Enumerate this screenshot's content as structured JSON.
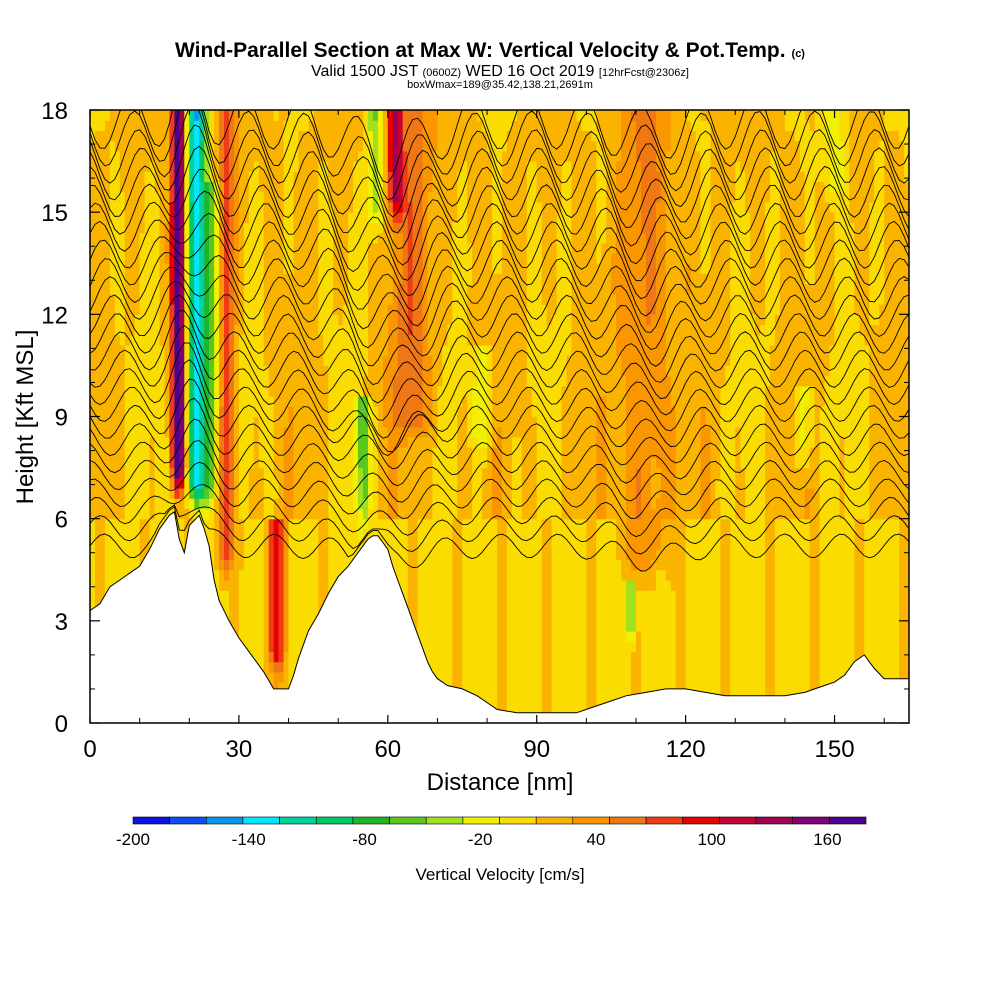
{
  "chart_data": {
    "type": "heatmap",
    "title": "Wind-Parallel Section at Max W: Vertical Velocity & Pot.Temp.",
    "title_mark": "(c)",
    "subtitle_parts": [
      "Valid 1500 JST ",
      "(0600Z)",
      " WED 16 Oct 2019 ",
      "[12hrFcst@2306z]"
    ],
    "subtitle2": "boxWmax=189@35.42,138.21,2691m",
    "xlabel": "Distance [nm]",
    "ylabel": "Height [Kft MSL]",
    "xlim": [
      0,
      165
    ],
    "ylim": [
      0,
      18
    ],
    "x_ticks": [
      0,
      30,
      60,
      90,
      120,
      150
    ],
    "y_ticks": [
      0,
      3,
      6,
      9,
      12,
      15,
      18
    ],
    "colorbar": {
      "label": "Vertical Velocity [cm/s]",
      "tick_values": [
        -200,
        -140,
        -80,
        -20,
        40,
        100,
        160
      ],
      "range": [
        -200,
        180
      ],
      "colors": [
        "#0a14e0",
        "#0a50f0",
        "#0a96f0",
        "#00e6ff",
        "#00d2a0",
        "#00c864",
        "#20b428",
        "#5ac81e",
        "#a0e01e",
        "#f0f000",
        "#fadc00",
        "#fab400",
        "#fa9600",
        "#f07814",
        "#f03c14",
        "#e60000",
        "#c80032",
        "#a00050",
        "#800078",
        "#50008c"
      ]
    },
    "terrain_kft": [
      [
        0,
        3.3
      ],
      [
        2,
        3.5
      ],
      [
        4,
        4.0
      ],
      [
        7,
        4.3
      ],
      [
        10,
        4.6
      ],
      [
        12,
        5.1
      ],
      [
        14,
        5.7
      ],
      [
        16,
        6.1
      ],
      [
        17,
        6.2
      ],
      [
        18,
        5.4
      ],
      [
        19,
        5.0
      ],
      [
        20,
        5.8
      ],
      [
        22,
        6.1
      ],
      [
        23,
        5.7
      ],
      [
        24,
        5.2
      ],
      [
        25,
        4.2
      ],
      [
        26,
        3.6
      ],
      [
        28,
        3.0
      ],
      [
        30,
        2.5
      ],
      [
        33,
        1.9
      ],
      [
        35,
        1.5
      ],
      [
        37,
        1.0
      ],
      [
        38,
        1.0
      ],
      [
        40,
        1.0
      ],
      [
        41,
        1.4
      ],
      [
        42,
        1.9
      ],
      [
        44,
        2.7
      ],
      [
        46,
        3.2
      ],
      [
        48,
        3.8
      ],
      [
        50,
        4.3
      ],
      [
        52,
        4.6
      ],
      [
        54,
        5.0
      ],
      [
        56,
        5.4
      ],
      [
        57,
        5.5
      ],
      [
        58,
        5.5
      ],
      [
        59,
        5.3
      ],
      [
        60,
        5.1
      ],
      [
        61,
        4.6
      ],
      [
        62,
        4.2
      ],
      [
        63,
        3.8
      ],
      [
        64,
        3.4
      ],
      [
        65,
        3.0
      ],
      [
        66,
        2.6
      ],
      [
        67,
        2.2
      ],
      [
        68,
        1.8
      ],
      [
        69,
        1.5
      ],
      [
        70,
        1.3
      ],
      [
        72,
        1.1
      ],
      [
        75,
        1.0
      ],
      [
        78,
        0.8
      ],
      [
        80,
        0.6
      ],
      [
        82,
        0.4
      ],
      [
        86,
        0.3
      ],
      [
        92,
        0.3
      ],
      [
        98,
        0.3
      ],
      [
        100,
        0.4
      ],
      [
        104,
        0.6
      ],
      [
        108,
        0.8
      ],
      [
        112,
        0.9
      ],
      [
        116,
        1.0
      ],
      [
        120,
        1.0
      ],
      [
        124,
        0.9
      ],
      [
        128,
        0.8
      ],
      [
        132,
        0.8
      ],
      [
        136,
        0.8
      ],
      [
        140,
        0.8
      ],
      [
        144,
        0.9
      ],
      [
        146,
        1.0
      ],
      [
        148,
        1.1
      ],
      [
        150,
        1.2
      ],
      [
        152,
        1.4
      ],
      [
        154,
        1.8
      ],
      [
        156,
        2.0
      ],
      [
        158,
        1.6
      ],
      [
        160,
        1.3
      ],
      [
        162,
        1.3
      ],
      [
        165,
        1.3
      ]
    ],
    "updrafts": [
      {
        "x": 17.8,
        "sigma": 0.9,
        "w": 190,
        "ymin": 6.5,
        "ymax": 18
      },
      {
        "x": 21.5,
        "sigma": 1.4,
        "w": -150,
        "ymin": 6,
        "ymax": 18
      },
      {
        "x": 24.5,
        "sigma": 1.3,
        "w": -60,
        "ymin": 6,
        "ymax": 16
      },
      {
        "x": 27.5,
        "sigma": 1.2,
        "w": 70,
        "ymin": 4,
        "ymax": 18
      },
      {
        "x": 37.5,
        "sigma": 1.2,
        "w": 85,
        "ymin": 1,
        "ymax": 6
      },
      {
        "x": 55,
        "sigma": 1.0,
        "w": -70,
        "ymin": 5.5,
        "ymax": 9.5
      },
      {
        "x": 57.5,
        "sigma": 1.2,
        "w": -60,
        "ymin": 14,
        "ymax": 18
      },
      {
        "x": 61.5,
        "sigma": 1.0,
        "w": 110,
        "ymin": 14.5,
        "ymax": 18
      },
      {
        "x": 65,
        "sigma": 3.0,
        "w": 45,
        "ymin": 8,
        "ymax": 18
      },
      {
        "x": 79,
        "sigma": 1.4,
        "w": -40,
        "ymin": 7.5,
        "ymax": 11
      },
      {
        "x": 109,
        "sigma": 0.5,
        "w": -90,
        "ymin": 2,
        "ymax": 4.2
      },
      {
        "x": 112,
        "sigma": 3.5,
        "w": 40,
        "ymin": 4,
        "ymax": 18
      },
      {
        "x": 144,
        "sigma": 1.2,
        "w": -40,
        "ymin": 7,
        "ymax": 10
      },
      {
        "x": 150,
        "sigma": 1.5,
        "w": -40,
        "ymin": 15,
        "ymax": 18
      }
    ],
    "theta_contours": {
      "count": 25,
      "y_start_kft": 5.2,
      "y_step_kft": 0.52,
      "contour_labels": []
    }
  }
}
